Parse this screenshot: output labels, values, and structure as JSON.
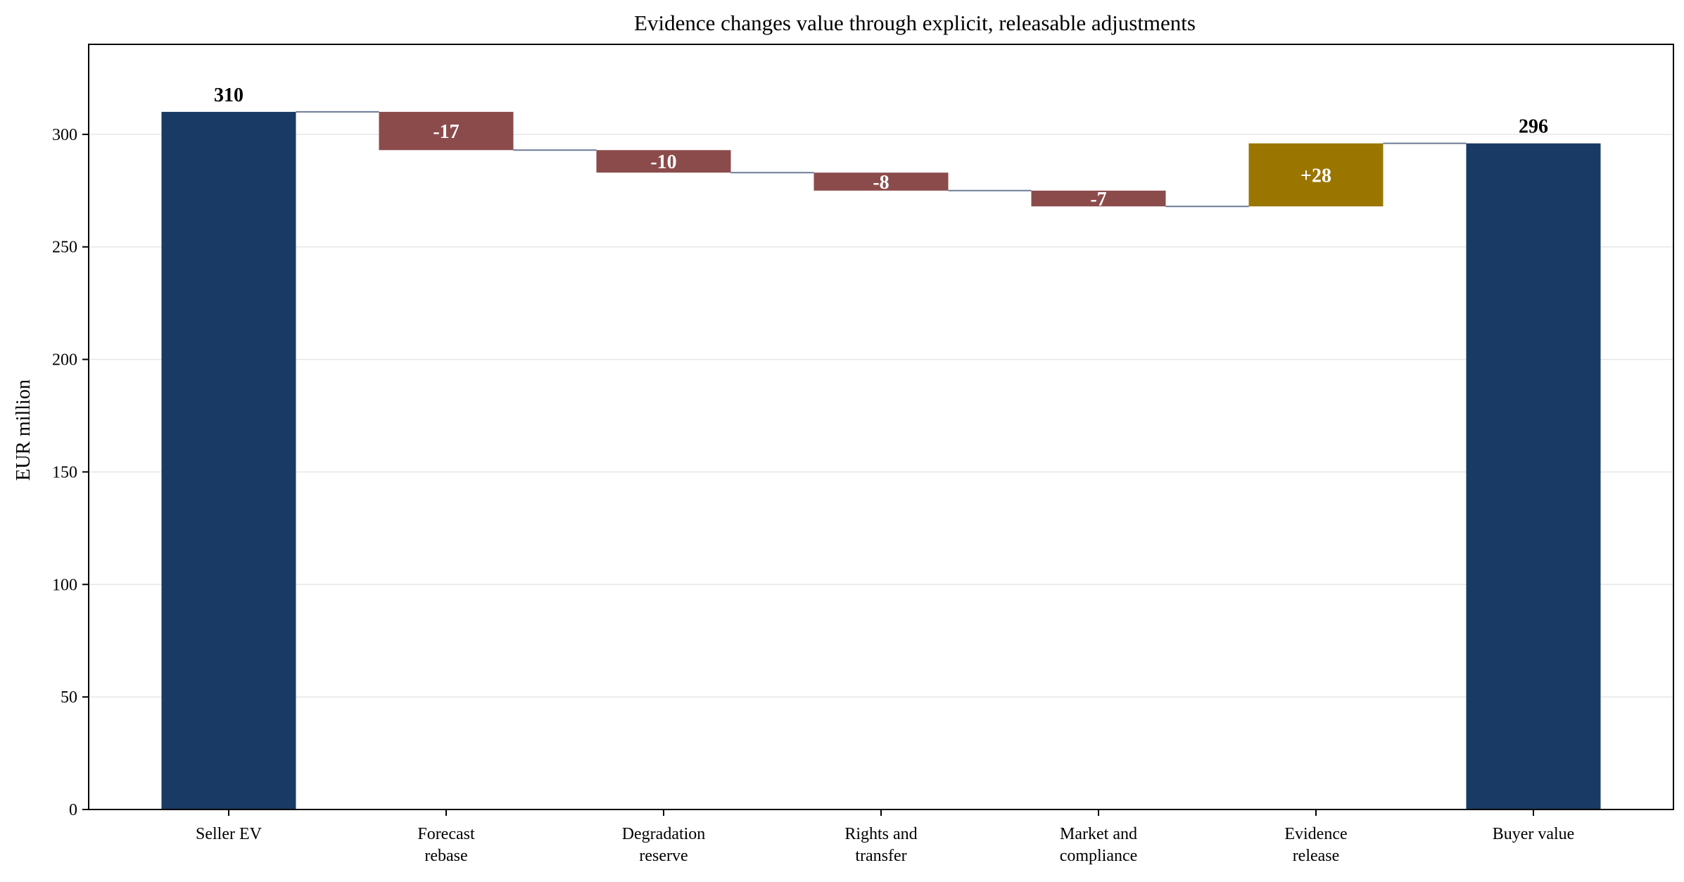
{
  "chart_data": {
    "type": "waterfall",
    "title": "Evidence changes value through explicit, releasable adjustments",
    "xlabel": "",
    "ylabel": "EUR million",
    "ylim": [
      0,
      340
    ],
    "yticks": [
      0,
      50,
      100,
      150,
      200,
      250,
      300
    ],
    "grid": "horizontal",
    "categories": [
      [
        "Seller EV"
      ],
      [
        "Forecast",
        "rebase"
      ],
      [
        "Degradation",
        "reserve"
      ],
      [
        "Rights and",
        "transfer"
      ],
      [
        "Market and",
        "compliance"
      ],
      [
        "Evidence",
        "release"
      ],
      [
        "Buyer value"
      ]
    ],
    "steps": [
      {
        "kind": "total",
        "value": 310,
        "label": "310"
      },
      {
        "kind": "delta",
        "value": -17,
        "label": "-17"
      },
      {
        "kind": "delta",
        "value": -10,
        "label": "-10"
      },
      {
        "kind": "delta",
        "value": -8,
        "label": "-8"
      },
      {
        "kind": "delta",
        "value": -7,
        "label": "-7"
      },
      {
        "kind": "delta",
        "value": 28,
        "label": "+28"
      },
      {
        "kind": "total",
        "value": 296,
        "label": "296"
      }
    ],
    "colors": {
      "total": "#1a3a66",
      "decrease": "#8c4b4b",
      "increase": "#9a7600",
      "connector": "#6b7a96",
      "grid": "#e6e6e6",
      "axis": "#000000"
    }
  }
}
